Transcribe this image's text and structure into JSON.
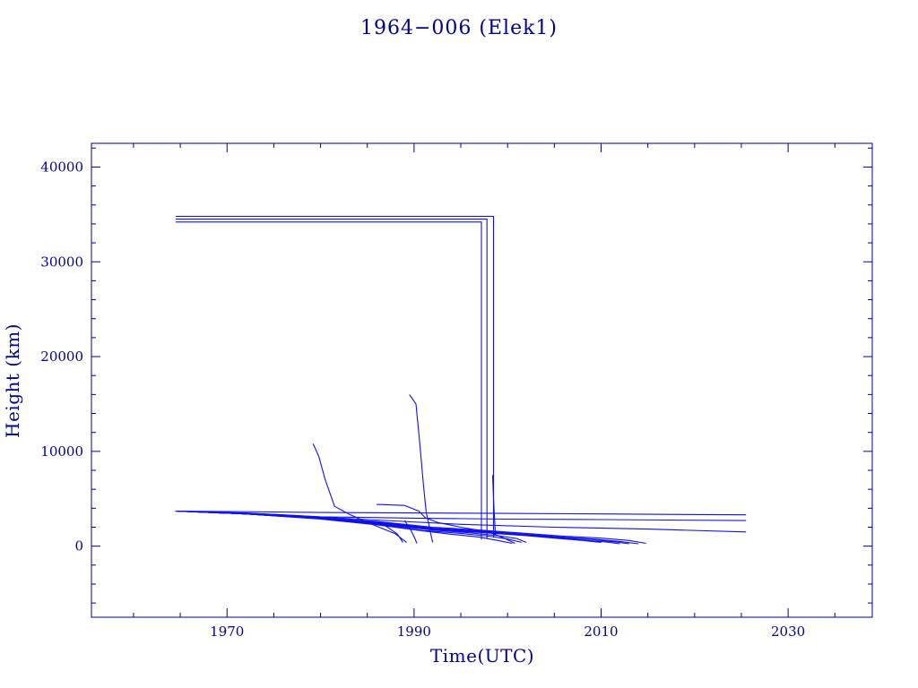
{
  "chart_data": {
    "type": "line",
    "title": "1964−006 (Elek1)",
    "xlabel": "Time(UTC)",
    "ylabel": "Height (km)",
    "xlim": [
      1955.5,
      2039
    ],
    "ylim": [
      -7500,
      42500
    ],
    "x_ticks": [
      1970,
      1990,
      2010,
      2030
    ],
    "y_ticks": [
      0,
      10000,
      20000,
      30000,
      40000
    ],
    "x_tick_labels": [
      "1970",
      "1990",
      "2010",
      "2030"
    ],
    "y_tick_labels": [
      "0",
      "10000",
      "20000",
      "30000",
      "40000"
    ],
    "grid": false,
    "colors": {
      "axis": "#00008b",
      "series": "#1010ee",
      "text": "#00008b"
    },
    "series": [
      {
        "points": [
          [
            1964.5,
            34800
          ],
          [
            1998.5,
            34800
          ],
          [
            1998.5,
            900
          ]
        ]
      },
      {
        "points": [
          [
            1964.5,
            34500
          ],
          [
            1997.8,
            34500
          ],
          [
            1997.8,
            800
          ]
        ]
      },
      {
        "points": [
          [
            1964.5,
            34200
          ],
          [
            1997.2,
            34200
          ],
          [
            1997.2,
            700
          ]
        ]
      },
      {
        "points": [
          [
            1964.5,
            3700
          ],
          [
            1970,
            3650
          ],
          [
            1980,
            3550
          ],
          [
            1990,
            3500
          ],
          [
            2000,
            3450
          ],
          [
            2010,
            3400
          ],
          [
            2025.5,
            3300
          ]
        ]
      },
      {
        "points": [
          [
            1964.5,
            3700
          ],
          [
            1972,
            3500
          ],
          [
            1980,
            3100
          ],
          [
            1990,
            2950
          ],
          [
            2000,
            2850
          ],
          [
            2010,
            2800
          ],
          [
            2025.5,
            2700
          ]
        ]
      },
      {
        "points": [
          [
            1964.5,
            3700
          ],
          [
            1975,
            3350
          ],
          [
            1985,
            2800
          ],
          [
            1995,
            2300
          ],
          [
            2005,
            2000
          ],
          [
            2015,
            1800
          ],
          [
            2025.5,
            1500
          ]
        ]
      },
      {
        "points": [
          [
            1964.5,
            3700
          ],
          [
            1972,
            3400
          ],
          [
            1980,
            3000
          ],
          [
            1986,
            2600
          ],
          [
            1992,
            2000
          ],
          [
            1997,
            1700
          ],
          [
            2002,
            1350
          ],
          [
            2006,
            1050
          ],
          [
            2010,
            850
          ],
          [
            2013,
            600
          ],
          [
            2014.8,
            300
          ]
        ]
      },
      {
        "points": [
          [
            1964.5,
            3700
          ],
          [
            1972,
            3400
          ],
          [
            1980,
            3000
          ],
          [
            1986,
            2550
          ],
          [
            1992,
            1900
          ],
          [
            1997,
            1600
          ],
          [
            2002,
            1250
          ],
          [
            2006,
            950
          ],
          [
            2009,
            750
          ],
          [
            2012,
            500
          ],
          [
            2014,
            250
          ]
        ]
      },
      {
        "points": [
          [
            1964.5,
            3700
          ],
          [
            1972,
            3400
          ],
          [
            1980,
            2950
          ],
          [
            1986,
            2500
          ],
          [
            1992,
            1850
          ],
          [
            1997,
            1550
          ],
          [
            2002,
            1200
          ],
          [
            2006,
            900
          ],
          [
            2009,
            700
          ],
          [
            2011.5,
            450
          ],
          [
            2013,
            250
          ]
        ]
      },
      {
        "points": [
          [
            1964.5,
            3700
          ],
          [
            1972,
            3400
          ],
          [
            1980,
            2950
          ],
          [
            1986,
            2450
          ],
          [
            1992,
            1800
          ],
          [
            1997,
            1500
          ],
          [
            2002,
            1150
          ],
          [
            2005,
            900
          ],
          [
            2008,
            650
          ],
          [
            2010.5,
            450
          ],
          [
            2012,
            250
          ]
        ]
      },
      {
        "points": [
          [
            1964.5,
            3700
          ],
          [
            1972,
            3400
          ],
          [
            1980,
            2900
          ],
          [
            1986,
            2400
          ],
          [
            1992,
            1750
          ],
          [
            1997,
            1450
          ],
          [
            2002,
            1100
          ],
          [
            2005,
            850
          ],
          [
            2008,
            600
          ],
          [
            2010,
            400
          ]
        ]
      },
      {
        "points": [
          [
            1964.5,
            3700
          ],
          [
            1972,
            3400
          ],
          [
            1980,
            2900
          ],
          [
            1986,
            2350
          ],
          [
            1992,
            1700
          ],
          [
            1996,
            1400
          ],
          [
            1999,
            1100
          ],
          [
            2001,
            800
          ],
          [
            2002,
            400
          ]
        ]
      },
      {
        "points": [
          [
            1964.5,
            3700
          ],
          [
            1972,
            3400
          ],
          [
            1980,
            2900
          ],
          [
            1986,
            2300
          ],
          [
            1991,
            1650
          ],
          [
            1995,
            1350
          ],
          [
            1998,
            1050
          ],
          [
            2000,
            750
          ],
          [
            2001.5,
            400
          ]
        ]
      },
      {
        "points": [
          [
            1964.5,
            3700
          ],
          [
            1972,
            3400
          ],
          [
            1980,
            2850
          ],
          [
            1986,
            2250
          ],
          [
            1991,
            1600
          ],
          [
            1994,
            1250
          ],
          [
            1997,
            950
          ],
          [
            1999.5,
            500
          ],
          [
            2000.5,
            300
          ]
        ]
      },
      {
        "points": [
          [
            1979.2,
            10800
          ],
          [
            1979.8,
            9500
          ],
          [
            1980.5,
            7000
          ],
          [
            1981.5,
            4200
          ],
          [
            1983,
            3400
          ],
          [
            1985.5,
            2300
          ],
          [
            1988,
            1300
          ],
          [
            1989.2,
            400
          ]
        ]
      },
      {
        "points": [
          [
            1989.5,
            16000
          ],
          [
            1990.2,
            15000
          ],
          [
            1990.6,
            11000
          ],
          [
            1991,
            6500
          ],
          [
            1991.3,
            3600
          ],
          [
            1991.6,
            2200
          ],
          [
            1991.8,
            1200
          ],
          [
            1992,
            400
          ]
        ]
      },
      {
        "points": [
          [
            1986,
            4400
          ],
          [
            1989,
            4300
          ],
          [
            1990.5,
            3700
          ],
          [
            1991.2,
            3000
          ],
          [
            1992.5,
            2500
          ],
          [
            1995,
            2000
          ],
          [
            1998,
            1500
          ],
          [
            1999.5,
            900
          ],
          [
            2000.8,
            300
          ]
        ]
      },
      {
        "points": [
          [
            1989,
            2700
          ],
          [
            1989.6,
            1800
          ],
          [
            1990,
            1000
          ],
          [
            1990.3,
            300
          ]
        ]
      },
      {
        "points": [
          [
            1985,
            2600
          ],
          [
            1987,
            2100
          ],
          [
            1988.2,
            1300
          ],
          [
            1988.8,
            400
          ]
        ]
      },
      {
        "points": [
          [
            1998.4,
            7500
          ],
          [
            1998.5,
            5000
          ],
          [
            1998.6,
            3000
          ],
          [
            1998.7,
            1200
          ]
        ]
      }
    ]
  }
}
